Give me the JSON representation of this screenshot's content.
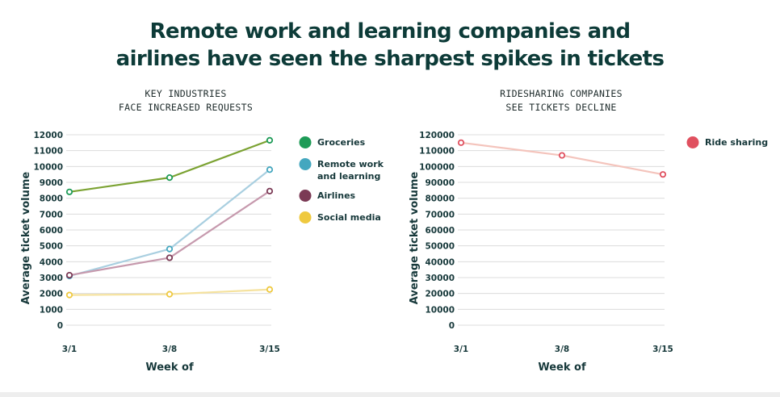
{
  "headline": {
    "line1": "Remote work and learning companies and",
    "line2": "airlines have seen the sharpest spikes in tickets"
  },
  "chart_data": [
    {
      "type": "line",
      "title": [
        "KEY INDUSTRIES",
        "FACE INCREASED REQUESTS"
      ],
      "xlabel": "Week of",
      "ylabel": "Average ticket volume",
      "x": [
        "3/1",
        "3/8",
        "3/15"
      ],
      "ylim": [
        0,
        12000
      ],
      "yticks": [
        0,
        1000,
        2000,
        3000,
        4000,
        5000,
        6000,
        7000,
        8000,
        9000,
        10000,
        11000,
        12000
      ],
      "grid": true,
      "legend_position": "right",
      "series": [
        {
          "name": "Groceries",
          "values": [
            8400,
            9300,
            11650
          ],
          "line_color": "#7ba232",
          "marker_color": "#1e9b57"
        },
        {
          "name": "Remote work and learning",
          "values": [
            3100,
            4800,
            9800
          ],
          "line_color": "#a9cfe0",
          "marker_color": "#44a7bf"
        },
        {
          "name": "Airlines",
          "values": [
            3150,
            4250,
            8450
          ],
          "line_color": "#c699ad",
          "marker_color": "#7b3a55"
        },
        {
          "name": "Social media",
          "values": [
            1900,
            1950,
            2250
          ],
          "line_color": "#f5e29e",
          "marker_color": "#efc93f"
        }
      ]
    },
    {
      "type": "line",
      "title": [
        "RIDESHARING COMPANIES",
        "SEE TICKETS DECLINE"
      ],
      "xlabel": "Week of",
      "ylabel": "Average ticket volume",
      "x": [
        "3/1",
        "3/8",
        "3/15"
      ],
      "ylim": [
        0,
        120000
      ],
      "yticks": [
        0,
        10000,
        20000,
        30000,
        40000,
        50000,
        60000,
        70000,
        80000,
        90000,
        100000,
        110000,
        120000
      ],
      "grid": true,
      "legend_position": "right",
      "series": [
        {
          "name": "Ride sharing",
          "values": [
            115000,
            107000,
            95000
          ],
          "line_color": "#f4c4bc",
          "marker_color": "#e0505f"
        }
      ]
    }
  ]
}
